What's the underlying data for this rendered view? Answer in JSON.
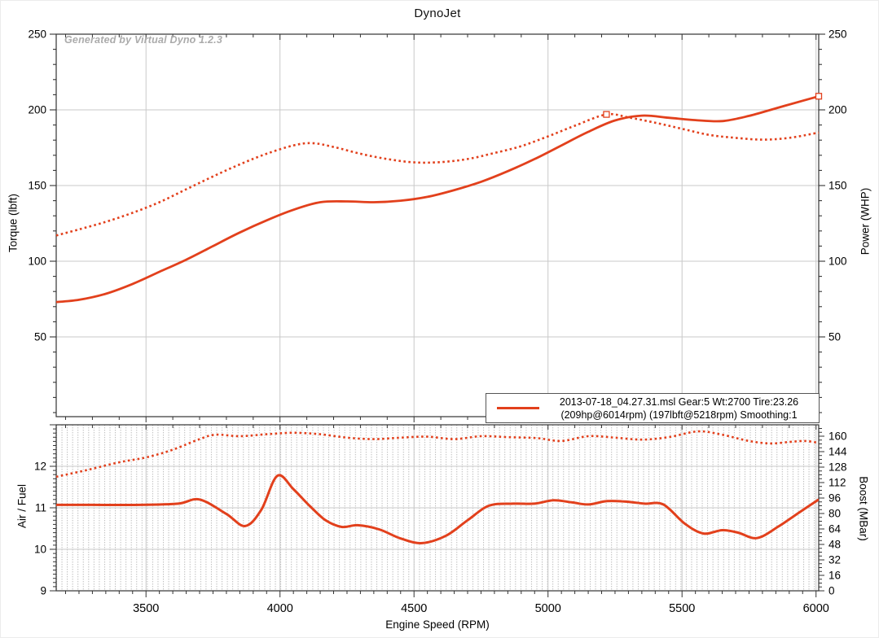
{
  "title": "DynoJet",
  "watermark": "Generated by Virtual Dyno 1.2.3",
  "colors": {
    "curve": "#e2401c",
    "grid_major": "#c9c9c9",
    "grid_minor_dot": "#bcbcbc",
    "axis": "#333333",
    "text": "#000000",
    "watermark": "#ababab",
    "legend_border": "#555555",
    "background": "#ffffff"
  },
  "legend": {
    "line1": "2013-07-18_04.27.31.msl Gear:5 Wt:2700 Tire:23.26",
    "line2": "(209hp@6014rpm) (197lbft@5218rpm) Smoothing:1"
  },
  "chart_data": [
    {
      "type": "line",
      "title": "DynoJet",
      "xlabel": "Engine Speed (RPM)",
      "ylabel_left": "Torque (lbft)",
      "ylabel_right": "Power (WHP)",
      "xlim": [
        3165,
        6010
      ],
      "ylim_left": [
        0,
        250
      ],
      "ylim_right": [
        0,
        250
      ],
      "x_ticks": [
        3500,
        4000,
        4500,
        5000,
        5500,
        6000
      ],
      "y_ticks": [
        50,
        100,
        150,
        200,
        250
      ],
      "x_minor_step": 100,
      "y_minor_step": 10,
      "grid": "major",
      "legend_position": "bottom-right",
      "series": [
        {
          "name": "Power (WHP)",
          "axis": "right",
          "style": "solid",
          "peak": {
            "x": 6014,
            "y": 209
          },
          "points": [
            [
              3165,
              73
            ],
            [
              3250,
              74.5
            ],
            [
              3350,
              78.5
            ],
            [
              3450,
              85
            ],
            [
              3550,
              93
            ],
            [
              3650,
              101
            ],
            [
              3750,
              110
            ],
            [
              3850,
              119
            ],
            [
              3950,
              127
            ],
            [
              4050,
              134
            ],
            [
              4150,
              139
            ],
            [
              4250,
              139.5
            ],
            [
              4350,
              139
            ],
            [
              4450,
              140
            ],
            [
              4550,
              142.5
            ],
            [
              4650,
              147
            ],
            [
              4750,
              152.5
            ],
            [
              4850,
              159.5
            ],
            [
              4950,
              167.5
            ],
            [
              5050,
              176.5
            ],
            [
              5150,
              185.5
            ],
            [
              5250,
              193
            ],
            [
              5350,
              196.2
            ],
            [
              5450,
              194.8
            ],
            [
              5550,
              193.2
            ],
            [
              5650,
              192.6
            ],
            [
              5750,
              196
            ],
            [
              5850,
              201
            ],
            [
              5950,
              206
            ],
            [
              6010,
              209
            ]
          ]
        },
        {
          "name": "Torque (lbft)",
          "axis": "left",
          "style": "dotted",
          "peak": {
            "x": 5218,
            "y": 197
          },
          "points": [
            [
              3165,
              117
            ],
            [
              3250,
              121
            ],
            [
              3350,
              126
            ],
            [
              3450,
              132
            ],
            [
              3550,
              139
            ],
            [
              3650,
              147.5
            ],
            [
              3750,
              156
            ],
            [
              3850,
              164
            ],
            [
              3950,
              171
            ],
            [
              4050,
              176.5
            ],
            [
              4120,
              178
            ],
            [
              4200,
              175.5
            ],
            [
              4300,
              171
            ],
            [
              4400,
              167.5
            ],
            [
              4500,
              165.3
            ],
            [
              4600,
              165.5
            ],
            [
              4700,
              167.5
            ],
            [
              4800,
              171.5
            ],
            [
              4900,
              176
            ],
            [
              5000,
              182.5
            ],
            [
              5100,
              189.5
            ],
            [
              5218,
              197
            ],
            [
              5300,
              195
            ],
            [
              5400,
              191.5
            ],
            [
              5500,
              187.5
            ],
            [
              5600,
              183.5
            ],
            [
              5700,
              181.5
            ],
            [
              5800,
              180.3
            ],
            [
              5900,
              181.5
            ],
            [
              6010,
              185
            ]
          ]
        }
      ]
    },
    {
      "type": "line",
      "title": "",
      "xlabel": "Engine Speed (RPM)",
      "ylabel_left": "Air / Fuel",
      "ylabel_right": "Boost (MBar)",
      "xlim": [
        3165,
        6010
      ],
      "ylim_left": [
        9,
        13
      ],
      "ylim_right": [
        0,
        172
      ],
      "x_ticks": [
        3500,
        4000,
        4500,
        5000,
        5500,
        6000
      ],
      "y_ticks_left": [
        9,
        10,
        11,
        12
      ],
      "y_ticks_right": [
        0,
        16,
        32,
        48,
        64,
        80,
        96,
        112,
        128,
        144,
        160
      ],
      "x_minor_step": 50,
      "grid": "major-plus-minor-dotted-columns",
      "series": [
        {
          "name": "Air / Fuel",
          "axis": "left",
          "style": "solid",
          "points": [
            [
              3165,
              11.07
            ],
            [
              3300,
              11.07
            ],
            [
              3480,
              11.07
            ],
            [
              3620,
              11.1
            ],
            [
              3700,
              11.2
            ],
            [
              3800,
              10.85
            ],
            [
              3870,
              10.56
            ],
            [
              3930,
              10.95
            ],
            [
              3990,
              11.77
            ],
            [
              4050,
              11.45
            ],
            [
              4110,
              11.05
            ],
            [
              4170,
              10.7
            ],
            [
              4230,
              10.54
            ],
            [
              4290,
              10.58
            ],
            [
              4370,
              10.48
            ],
            [
              4450,
              10.26
            ],
            [
              4530,
              10.15
            ],
            [
              4620,
              10.33
            ],
            [
              4700,
              10.7
            ],
            [
              4780,
              11.05
            ],
            [
              4870,
              11.1
            ],
            [
              4950,
              11.1
            ],
            [
              5020,
              11.18
            ],
            [
              5090,
              11.13
            ],
            [
              5150,
              11.08
            ],
            [
              5220,
              11.16
            ],
            [
              5290,
              11.15
            ],
            [
              5360,
              11.1
            ],
            [
              5430,
              11.08
            ],
            [
              5510,
              10.62
            ],
            [
              5580,
              10.38
            ],
            [
              5650,
              10.46
            ],
            [
              5710,
              10.4
            ],
            [
              5780,
              10.27
            ],
            [
              5860,
              10.55
            ],
            [
              5940,
              10.9
            ],
            [
              6010,
              11.2
            ]
          ]
        },
        {
          "name": "Boost (MBar)",
          "axis": "right",
          "style": "dotted",
          "points": [
            [
              3165,
              118
            ],
            [
              3280,
              125
            ],
            [
              3400,
              133
            ],
            [
              3500,
              138
            ],
            [
              3600,
              146
            ],
            [
              3700,
              157
            ],
            [
              3760,
              161.5
            ],
            [
              3850,
              160
            ],
            [
              3950,
              162
            ],
            [
              4050,
              163.5
            ],
            [
              4150,
              162
            ],
            [
              4250,
              158.5
            ],
            [
              4350,
              157
            ],
            [
              4450,
              158.5
            ],
            [
              4550,
              159.5
            ],
            [
              4650,
              157
            ],
            [
              4750,
              160
            ],
            [
              4850,
              159
            ],
            [
              4960,
              158
            ],
            [
              5050,
              155
            ],
            [
              5150,
              160
            ],
            [
              5250,
              158.5
            ],
            [
              5350,
              156.5
            ],
            [
              5450,
              159
            ],
            [
              5560,
              165
            ],
            [
              5650,
              161.5
            ],
            [
              5750,
              155
            ],
            [
              5830,
              152.5
            ],
            [
              5900,
              154
            ],
            [
              5960,
              155
            ],
            [
              6010,
              153
            ]
          ]
        }
      ]
    }
  ]
}
